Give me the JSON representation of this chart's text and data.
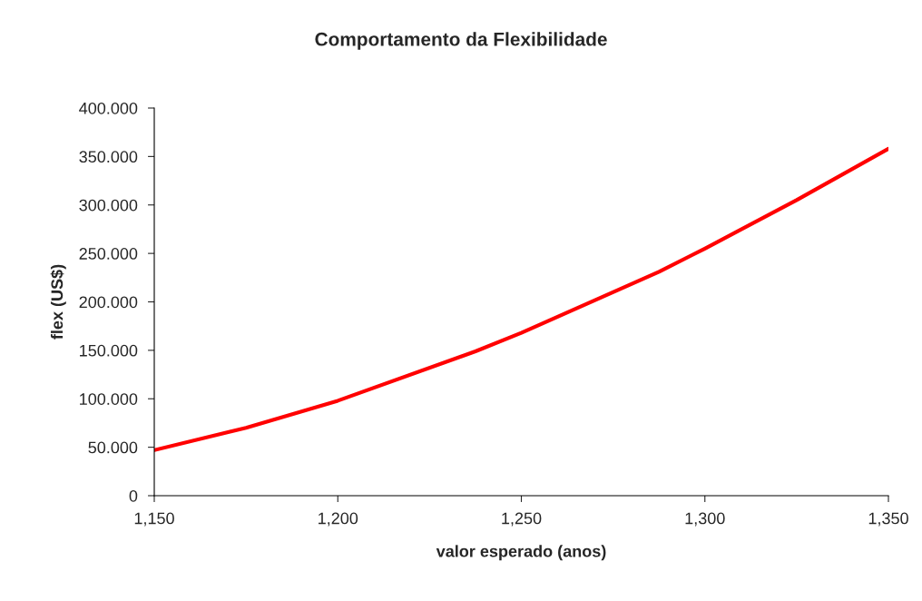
{
  "chart_data": {
    "type": "line",
    "title": "Comportamento da Flexibilidade",
    "xlabel": "valor esperado (anos)",
    "ylabel": "flex (US$)",
    "x": [
      1.15,
      1.175,
      1.2,
      1.2375,
      1.25,
      1.2875,
      1.3,
      1.325,
      1.35
    ],
    "series": [
      {
        "color": "#ff0000",
        "values": [
          47000,
          70000,
          98000,
          149000,
          168000,
          231000,
          255000,
          305000,
          358000
        ]
      }
    ],
    "xlim": [
      1.15,
      1.35
    ],
    "xticks": [
      {
        "value": 1.15,
        "label": "1,150"
      },
      {
        "value": 1.2,
        "label": "1,200"
      },
      {
        "value": 1.25,
        "label": "1,250"
      },
      {
        "value": 1.3,
        "label": "1,300"
      },
      {
        "value": 1.35,
        "label": "1,350"
      }
    ],
    "ylim": [
      0,
      400000
    ],
    "yticks": [
      {
        "value": 0,
        "label": "0"
      },
      {
        "value": 50000,
        "label": "50.000"
      },
      {
        "value": 100000,
        "label": "100.000"
      },
      {
        "value": 150000,
        "label": "150.000"
      },
      {
        "value": 200000,
        "label": "200.000"
      },
      {
        "value": 250000,
        "label": "250.000"
      },
      {
        "value": 300000,
        "label": "300.000"
      },
      {
        "value": 350000,
        "label": "350.000"
      },
      {
        "value": 400000,
        "label": "400.000"
      }
    ],
    "grid": false,
    "marker": "none",
    "line_style": "solid"
  }
}
